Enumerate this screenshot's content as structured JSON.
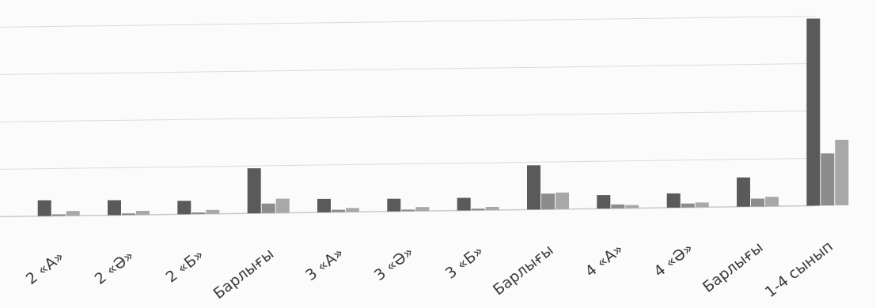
{
  "chart_data": {
    "type": "bar",
    "title": "",
    "xlabel": "",
    "ylabel": "",
    "grid": true,
    "legend": "none",
    "categories": [
      "2 «А»",
      "2 «Ә»",
      "2 «Б»",
      "Барлығы",
      "3 «А»",
      "3 «Ә»",
      "3 «Б»",
      "Барлығы",
      "4 «А»",
      "4 «Ә»",
      "Барлығы",
      "1-4 сынып"
    ],
    "series": [
      {
        "color": "#5a5a5a",
        "values": [
          20,
          19,
          17,
          57,
          17,
          16,
          16,
          56,
          17,
          18,
          37,
          237
        ]
      },
      {
        "color": "#8c8c8c",
        "values": [
          2,
          2,
          2,
          12,
          3,
          2,
          2,
          20,
          5,
          5,
          10,
          66
        ]
      },
      {
        "color": "#a8a8a8",
        "values": [
          6,
          5,
          5,
          18,
          5,
          5,
          4,
          21,
          4,
          6,
          12,
          83
        ]
      }
    ],
    "ylim": [
      0,
      240
    ]
  }
}
